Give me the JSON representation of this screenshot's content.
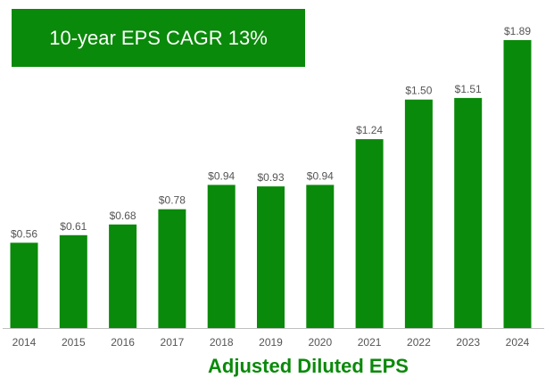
{
  "banner": {
    "text": "10-year EPS CAGR 13%"
  },
  "caption": "Adjusted Diluted EPS",
  "colors": {
    "bar": "#0a8a0a",
    "banner_bg": "#0a8a0a",
    "banner_text": "#ffffff",
    "caption": "#0a8a0a",
    "label": "#555555",
    "axis": "#bfbfbf"
  },
  "chart_data": {
    "type": "bar",
    "title": "",
    "xlabel": "Adjusted Diluted EPS",
    "ylabel": "",
    "categories": [
      "2014",
      "2015",
      "2016",
      "2017",
      "2018",
      "2019",
      "2020",
      "2021",
      "2022",
      "2023",
      "2024"
    ],
    "values": [
      0.56,
      0.61,
      0.68,
      0.78,
      0.94,
      0.93,
      0.94,
      1.24,
      1.5,
      1.51,
      1.89
    ],
    "value_labels": [
      "$0.56",
      "$0.61",
      "$0.68",
      "$0.78",
      "$0.94",
      "$0.93",
      "$0.94",
      "$1.24",
      "$1.50",
      "$1.51",
      "$1.89"
    ],
    "ylim": [
      0,
      1.89
    ],
    "grid": false,
    "legend": "none"
  }
}
